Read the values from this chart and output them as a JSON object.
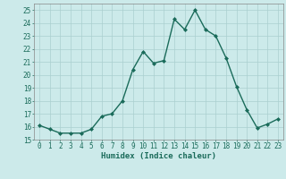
{
  "x": [
    0,
    1,
    2,
    3,
    4,
    5,
    6,
    7,
    8,
    9,
    10,
    11,
    12,
    13,
    14,
    15,
    16,
    17,
    18,
    19,
    20,
    21,
    22,
    23
  ],
  "y": [
    16.1,
    15.8,
    15.5,
    15.5,
    15.5,
    15.8,
    16.8,
    17.0,
    18.0,
    20.4,
    21.8,
    20.9,
    21.1,
    24.3,
    23.5,
    25.0,
    23.5,
    23.0,
    21.3,
    19.1,
    17.3,
    15.9,
    16.2,
    16.6
  ],
  "line_color": "#1a6b5a",
  "marker": "D",
  "marker_size": 2.0,
  "linewidth": 1.0,
  "xlabel": "Humidex (Indice chaleur)",
  "ylim": [
    15,
    25.5
  ],
  "xlim": [
    -0.5,
    23.5
  ],
  "yticks": [
    15,
    16,
    17,
    18,
    19,
    20,
    21,
    22,
    23,
    24,
    25
  ],
  "xticks": [
    0,
    1,
    2,
    3,
    4,
    5,
    6,
    7,
    8,
    9,
    10,
    11,
    12,
    13,
    14,
    15,
    16,
    17,
    18,
    19,
    20,
    21,
    22,
    23
  ],
  "bg_color": "#cceaea",
  "grid_color": "#aacfcf",
  "tick_fontsize": 5.5,
  "label_fontsize": 6.5
}
